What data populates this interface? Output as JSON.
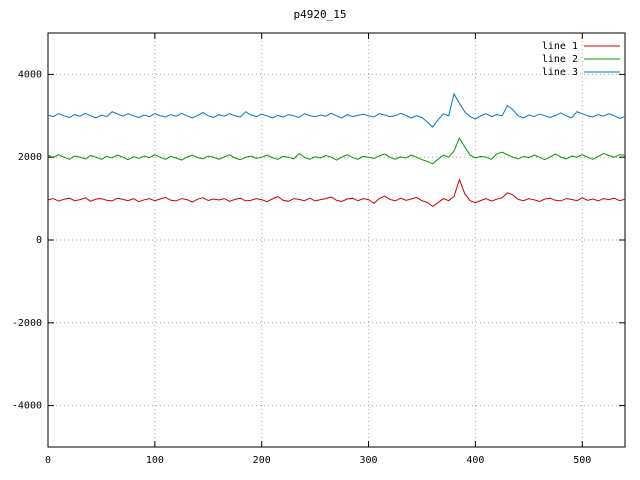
{
  "chart_data": {
    "type": "line",
    "title": "p4920_15",
    "xlabel": "",
    "ylabel": "",
    "xlim": [
      0,
      540
    ],
    "ylim": [
      -5000,
      5000
    ],
    "x_ticks": [
      0,
      100,
      200,
      300,
      400,
      500
    ],
    "y_ticks": [
      -4000,
      -2000,
      0,
      2000,
      4000
    ],
    "grid": true,
    "grid_style": "dotted",
    "legend_position": "top-right-inside",
    "x_start": 0,
    "x_step": 5,
    "series": [
      {
        "name": "line 1",
        "color": "#cc0000",
        "values": [
          970,
          1000,
          940,
          985,
          1010,
          950,
          975,
          1020,
          935,
          990,
          1000,
          960,
          945,
          1010,
          980,
          950,
          1000,
          925,
          970,
          1000,
          950,
          990,
          1030,
          960,
          945,
          1000,
          975,
          915,
          985,
          1020,
          955,
          990,
          965,
          1000,
          935,
          980,
          1010,
          945,
          960,
          1000,
          975,
          925,
          990,
          1050,
          960,
          935,
          1000,
          980,
          950,
          1010,
          945,
          975,
          1000,
          1040,
          960,
          930,
          990,
          1010,
          950,
          1000,
          975,
          885,
          1000,
          1060,
          980,
          945,
          1010,
          960,
          990,
          1030,
          950,
          905,
          810,
          900,
          1000,
          950,
          1050,
          1460,
          1120,
          950,
          900,
          955,
          1000,
          940,
          985,
          1020,
          1140,
          1090,
          980,
          950,
          1000,
          970,
          930,
          990,
          1010,
          960,
          945,
          1000,
          980,
          950,
          1020,
          960,
          990,
          945,
          1000,
          975,
          1010,
          950,
          985
        ]
      },
      {
        "name": "line 2",
        "color": "#009900",
        "values": [
          2050,
          1990,
          2060,
          2000,
          1950,
          2030,
          2000,
          1960,
          2040,
          2000,
          1950,
          2020,
          1980,
          2050,
          2000,
          1940,
          2010,
          1970,
          2030,
          1990,
          2060,
          2000,
          1950,
          2020,
          1980,
          1930,
          2000,
          2050,
          1990,
          1960,
          2030,
          2000,
          1950,
          2010,
          2060,
          1980,
          1940,
          2000,
          2030,
          1970,
          2000,
          2050,
          1990,
          1950,
          2020,
          2000,
          1960,
          2090,
          2000,
          1950,
          2010,
          1980,
          2040,
          2000,
          1930,
          2000,
          2060,
          1990,
          1950,
          2020,
          2000,
          1970,
          2030,
          2080,
          2000,
          1950,
          2010,
          1980,
          2050,
          2000,
          1940,
          1900,
          1840,
          1950,
          2050,
          2000,
          2150,
          2460,
          2250,
          2050,
          1980,
          2020,
          2000,
          1950,
          2080,
          2120,
          2060,
          2000,
          1960,
          2020,
          1990,
          2050,
          2000,
          1940,
          2010,
          2080,
          2000,
          1960,
          2030,
          2000,
          2060,
          2000,
          1950,
          2020,
          2090,
          2040,
          2000,
          2060,
          2050
        ]
      },
      {
        "name": "line 3",
        "color": "#0077cc",
        "values": [
          3020,
          2980,
          3050,
          3000,
          2960,
          3030,
          2990,
          3060,
          3000,
          2950,
          3020,
          2980,
          3100,
          3040,
          2990,
          3050,
          3000,
          2960,
          3020,
          2980,
          3050,
          3000,
          2970,
          3030,
          2990,
          3060,
          3000,
          2950,
          3010,
          3080,
          3000,
          2960,
          3030,
          2990,
          3050,
          3000,
          2970,
          3100,
          3020,
          2980,
          3040,
          3000,
          2950,
          3010,
          2970,
          3030,
          3000,
          2960,
          3050,
          3000,
          2980,
          3020,
          2990,
          3060,
          3000,
          2950,
          3030,
          2980,
          3010,
          3040,
          3000,
          2970,
          3050,
          3020,
          2980,
          3000,
          3060,
          3010,
          2950,
          3000,
          2960,
          2850,
          2730,
          2900,
          3050,
          3000,
          3530,
          3300,
          3100,
          2980,
          2920,
          3000,
          3050,
          2980,
          3030,
          3000,
          3250,
          3150,
          3000,
          2950,
          3020,
          2980,
          3040,
          3000,
          2960,
          3010,
          3070,
          3000,
          2950,
          3100,
          3050,
          3000,
          2970,
          3030,
          2990,
          3050,
          3000,
          2940,
          2980
        ]
      }
    ]
  }
}
